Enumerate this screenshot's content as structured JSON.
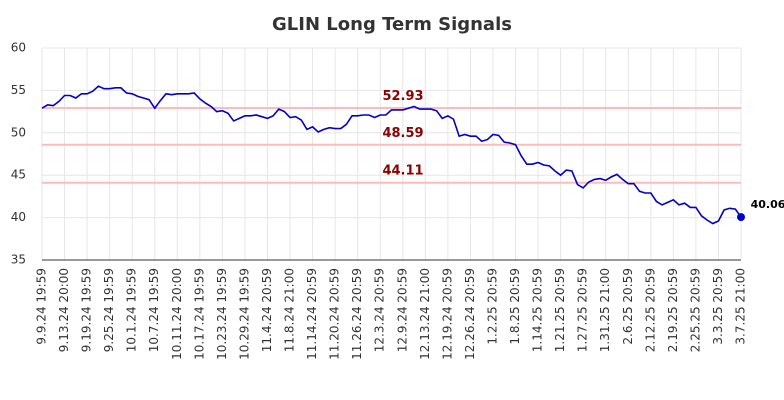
{
  "chart_data": {
    "type": "line",
    "title": "GLIN Long Term Signals",
    "categories": [
      "9.9.24 19:59",
      null,
      null,
      null,
      "9.13.24 20:00",
      null,
      null,
      null,
      "9.19.24 19:59",
      null,
      null,
      null,
      "9.25.24 19:59",
      null,
      null,
      null,
      "10.1.24 19:59",
      null,
      null,
      null,
      "10.7.24 19:59",
      null,
      null,
      null,
      "10.11.24 20:00",
      null,
      null,
      null,
      "10.17.24 19:59",
      null,
      null,
      null,
      "10.23.24 19:59",
      null,
      null,
      null,
      "10.29.24 19:59",
      null,
      null,
      null,
      "11.4.24 20:59",
      null,
      null,
      null,
      "11.8.24 21:00",
      null,
      null,
      null,
      "11.14.24 20:59",
      null,
      null,
      null,
      "11.20.24 20:59",
      null,
      null,
      null,
      "11.26.24 20:59",
      null,
      null,
      null,
      "12.3.24 20:59",
      null,
      null,
      null,
      "12.9.24 20:59",
      null,
      null,
      null,
      "12.13.24 21:00",
      null,
      null,
      null,
      "12.19.24 20:59",
      null,
      null,
      null,
      "12.26.24 20:59",
      null,
      null,
      null,
      "1.2.25 20:59",
      null,
      null,
      null,
      "1.8.25 20:59",
      null,
      null,
      null,
      "1.14.25 20:59",
      null,
      null,
      null,
      "1.21.25 20:59",
      null,
      null,
      null,
      "1.27.25 20:59",
      null,
      null,
      null,
      "1.31.25 21:00",
      null,
      null,
      null,
      "2.6.25 20:59",
      null,
      null,
      null,
      "2.12.25 20:59",
      null,
      null,
      null,
      "2.19.25 20:59",
      null,
      null,
      null,
      "2.25.25 20:59",
      null,
      null,
      null,
      "3.3.25 20:59",
      null,
      null,
      null,
      "3.7.25 21:00"
    ],
    "series": [
      {
        "color": "#0000cc",
        "values": [
          52.9,
          53.3,
          53.2,
          53.7,
          54.4,
          54.4,
          54.1,
          54.6,
          54.6,
          54.9,
          55.5,
          55.2,
          55.2,
          55.3,
          55.3,
          54.7,
          54.6,
          54.3,
          54.1,
          53.9,
          52.9,
          53.8,
          54.6,
          54.5,
          54.6,
          54.6,
          54.6,
          54.7,
          54.0,
          53.5,
          53.1,
          52.5,
          52.6,
          52.3,
          51.4,
          51.7,
          52.0,
          52.0,
          52.1,
          51.9,
          51.7,
          52.0,
          52.8,
          52.5,
          51.8,
          51.9,
          51.5,
          50.4,
          50.7,
          50.1,
          50.4,
          50.6,
          50.5,
          50.5,
          51.0,
          52.0,
          52.0,
          52.1,
          52.1,
          51.8,
          52.1,
          52.1,
          52.7,
          52.7,
          52.7,
          52.9,
          53.1,
          52.8,
          52.8,
          52.8,
          52.6,
          51.7,
          52.0,
          51.6,
          49.6,
          49.8,
          49.6,
          49.6,
          49.0,
          49.2,
          49.8,
          49.7,
          48.9,
          48.8,
          48.6,
          47.3,
          46.3,
          46.3,
          46.5,
          46.2,
          46.1,
          45.5,
          45.0,
          45.6,
          45.5,
          43.9,
          43.5,
          44.2,
          44.5,
          44.6,
          44.4,
          44.8,
          45.1,
          44.5,
          44.0,
          44.0,
          43.1,
          42.9,
          42.9,
          41.9,
          41.5,
          41.8,
          42.1,
          41.5,
          41.7,
          41.2,
          41.2,
          40.2,
          39.7,
          39.3,
          39.6,
          40.9,
          41.1,
          41.0,
          40.06
        ]
      }
    ],
    "hlines": [
      {
        "value": 52.93,
        "color": "#ffbbbb",
        "label_color": "#8b0000"
      },
      {
        "value": 48.59,
        "color": "#ffbbbb",
        "label_color": "#8b0000"
      },
      {
        "value": 44.11,
        "color": "#ffbbbb",
        "label_color": "#8b0000"
      }
    ],
    "ylim": [
      35,
      60
    ],
    "yticks": [
      35,
      40,
      45,
      50,
      55,
      60
    ],
    "grid": true
  }
}
